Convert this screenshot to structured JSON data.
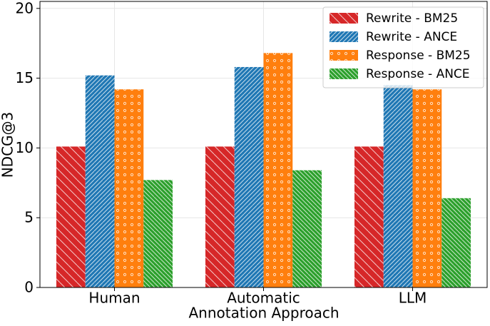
{
  "chart_data": {
    "type": "bar",
    "xlabel": "Annotation Approach",
    "ylabel": "NDCG@3",
    "categories": [
      "Human",
      "Automatic",
      "LLM"
    ],
    "series": [
      {
        "name": "Rewrite - BM25",
        "color": "#d62728",
        "hatch": "\\",
        "values": [
          10.1,
          10.1,
          10.1
        ]
      },
      {
        "name": "Rewrite - ANCE",
        "color": "#1f77b4",
        "hatch": "//",
        "values": [
          15.2,
          15.8,
          14.5
        ]
      },
      {
        "name": "Response - BM25",
        "color": "#ff7f0e",
        "hatch": "o",
        "values": [
          14.2,
          16.8,
          14.2
        ]
      },
      {
        "name": "Response - ANCE",
        "color": "#2ca02c",
        "hatch": "\\\\",
        "values": [
          7.7,
          8.4,
          6.4
        ]
      }
    ],
    "ylim": [
      0,
      20.5
    ],
    "yticks": [
      0,
      5,
      10,
      15,
      20
    ],
    "grid": true,
    "legend": "upper right"
  }
}
